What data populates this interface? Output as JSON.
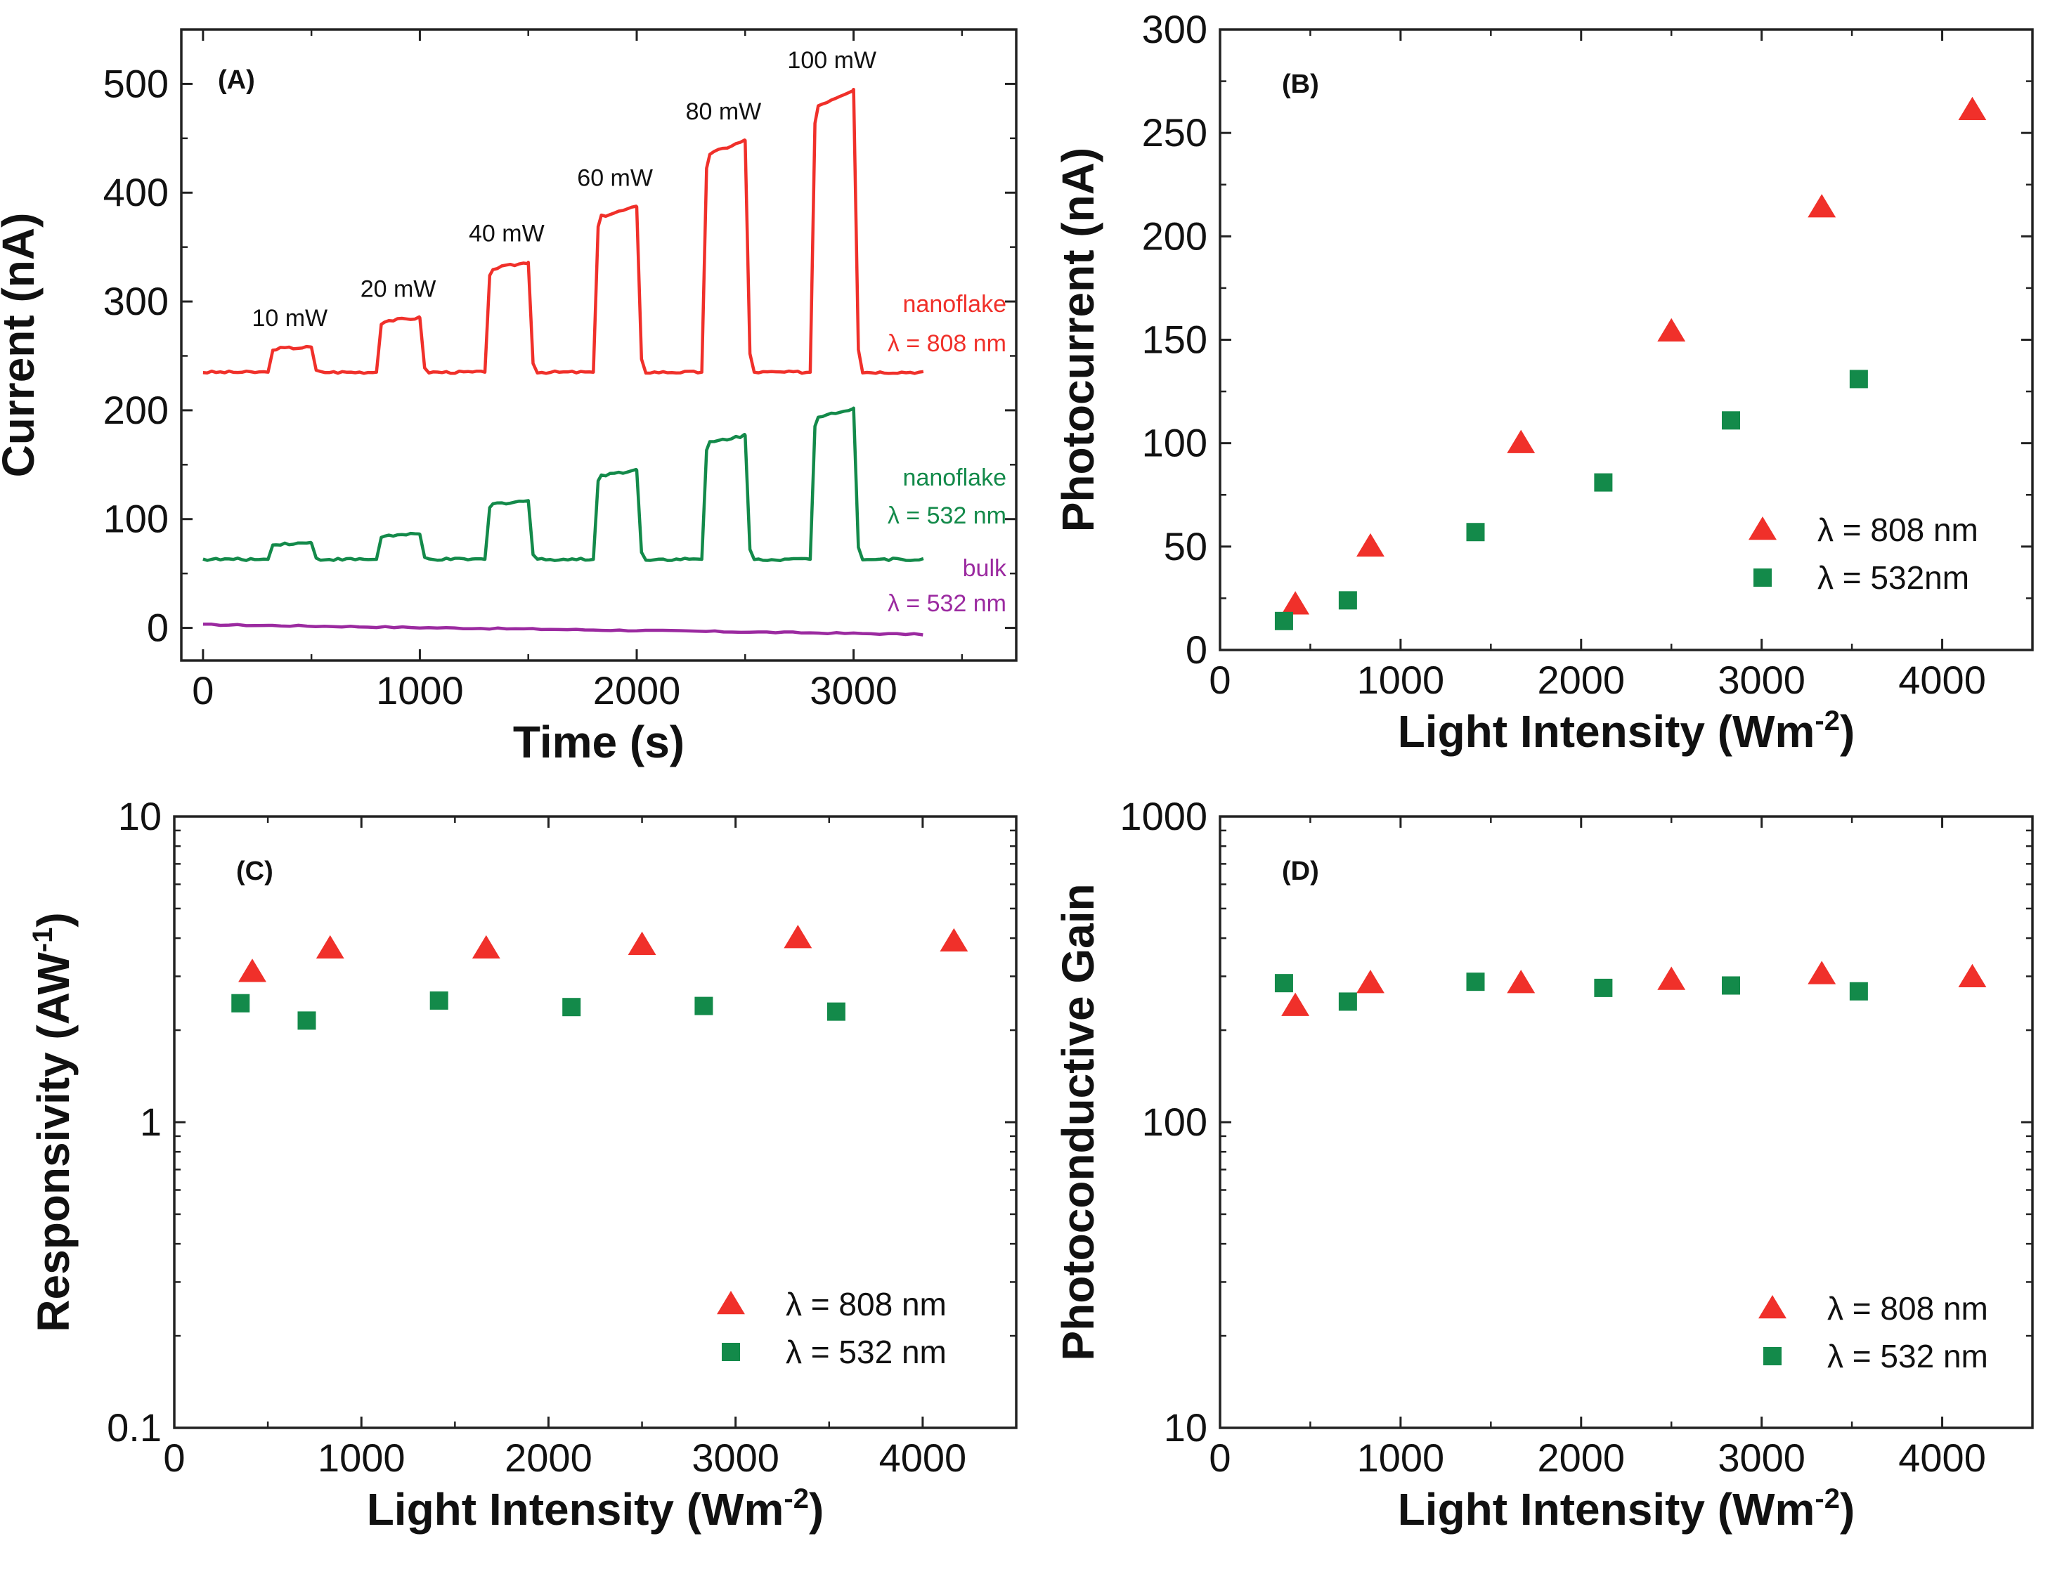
{
  "colors": {
    "red": "#f0302a",
    "green": "#138a4a",
    "purple": "#9b2aa0",
    "axis": "#222222"
  },
  "chart_data": [
    {
      "panel": "A",
      "type": "line",
      "label": "(A)",
      "xlabel": "Time (s)",
      "ylabel": "Current (nA)",
      "xlim": [
        -100,
        3750
      ],
      "ylim": [
        -30,
        550
      ],
      "xticks": [
        0,
        1000,
        2000,
        3000
      ],
      "yticks": [
        0,
        100,
        200,
        300,
        400,
        500
      ],
      "on_intervals": [
        [
          300,
          500
        ],
        [
          800,
          1000
        ],
        [
          1300,
          1500
        ],
        [
          1800,
          2000
        ],
        [
          2300,
          2500
        ],
        [
          2800,
          3000
        ]
      ],
      "pulse_labels": [
        "10 mW",
        "20 mW",
        "40 mW",
        "60 mW",
        "80 mW",
        "100 mW"
      ],
      "series": [
        {
          "name": "nanoflake 808",
          "text": [
            "nanoflake",
            "λ = 808 nm"
          ],
          "color": "red",
          "baseline": 235,
          "x_end": 3330,
          "plateaus": [
            258,
            285,
            336,
            387,
            448,
            495
          ]
        },
        {
          "name": "nanoflake 532",
          "text": [
            "nanoflake",
            "λ = 532 nm"
          ],
          "color": "green",
          "baseline": 63,
          "x_end": 3330,
          "plateaus": [
            78,
            86,
            117,
            145,
            177,
            202
          ]
        },
        {
          "name": "bulk 532",
          "text": [
            "bulk",
            "λ = 532 nm"
          ],
          "color": "purple",
          "baseline": 3,
          "x_end": 3330,
          "plateaus": []
        }
      ]
    },
    {
      "panel": "B",
      "type": "scatter",
      "label": "(B)",
      "xlabel": "Light Intensity (Wm",
      "xlabel_sup": "-2",
      "ylabel": "Photocurrent (nA)",
      "xlim": [
        0,
        4500
      ],
      "ylim": [
        0,
        300
      ],
      "xticks": [
        0,
        1000,
        2000,
        3000,
        4000
      ],
      "yticks": [
        0,
        50,
        100,
        150,
        200,
        250,
        300
      ],
      "series": [
        {
          "name": "λ = 808 nm",
          "marker": "triangle",
          "color": "red",
          "x": [
            417,
            833,
            1667,
            2500,
            3333,
            4167
          ],
          "y": [
            22,
            50,
            100,
            154,
            214,
            261
          ]
        },
        {
          "name": "λ = 532nm",
          "marker": "square",
          "color": "green",
          "x": [
            354,
            708,
            1415,
            2123,
            2830,
            3538
          ],
          "y": [
            14,
            24,
            57,
            81,
            111,
            131
          ]
        }
      ]
    },
    {
      "panel": "C",
      "type": "scatter",
      "label": "(C)",
      "xlabel": "Light Intensity (Wm",
      "xlabel_sup": "-2",
      "ylabel": "Responsivity (AW",
      "ylabel_sup": "-1",
      "yscale": "log",
      "xlim": [
        0,
        4500
      ],
      "ylim": [
        0.1,
        10
      ],
      "xticks": [
        0,
        1000,
        2000,
        3000,
        4000
      ],
      "yticks": [
        0.1,
        1,
        10
      ],
      "ytick_labels": [
        "0.1",
        "1",
        "10"
      ],
      "series": [
        {
          "name": "λ = 808 nm",
          "marker": "triangle",
          "color": "red",
          "x": [
            417,
            833,
            1667,
            2500,
            3333,
            4167
          ],
          "y": [
            3.1,
            3.7,
            3.7,
            3.8,
            4.0,
            3.9
          ]
        },
        {
          "name": "λ = 532 nm",
          "marker": "square",
          "color": "green",
          "x": [
            354,
            708,
            1415,
            2123,
            2830,
            3538
          ],
          "y": [
            2.45,
            2.15,
            2.5,
            2.38,
            2.4,
            2.3
          ]
        }
      ]
    },
    {
      "panel": "D",
      "type": "scatter",
      "label": "(D)",
      "xlabel": "Light Intensity (Wm",
      "xlabel_sup": "-2",
      "ylabel": "Photoconductive Gain",
      "yscale": "log",
      "xlim": [
        0,
        4500
      ],
      "ylim": [
        10,
        1000
      ],
      "xticks": [
        0,
        1000,
        2000,
        3000,
        4000
      ],
      "yticks": [
        10,
        100,
        1000
      ],
      "ytick_labels": [
        "10",
        "100",
        "1000"
      ],
      "series": [
        {
          "name": "λ = 808 nm",
          "marker": "triangle",
          "color": "red",
          "x": [
            417,
            833,
            1667,
            2500,
            3333,
            4167
          ],
          "y": [
            240,
            285,
            285,
            292,
            305,
            298
          ]
        },
        {
          "name": "λ = 532 nm",
          "marker": "square",
          "color": "green",
          "x": [
            354,
            708,
            1415,
            2123,
            2830,
            3538
          ],
          "y": [
            285,
            248,
            288,
            275,
            280,
            268
          ]
        }
      ]
    }
  ]
}
